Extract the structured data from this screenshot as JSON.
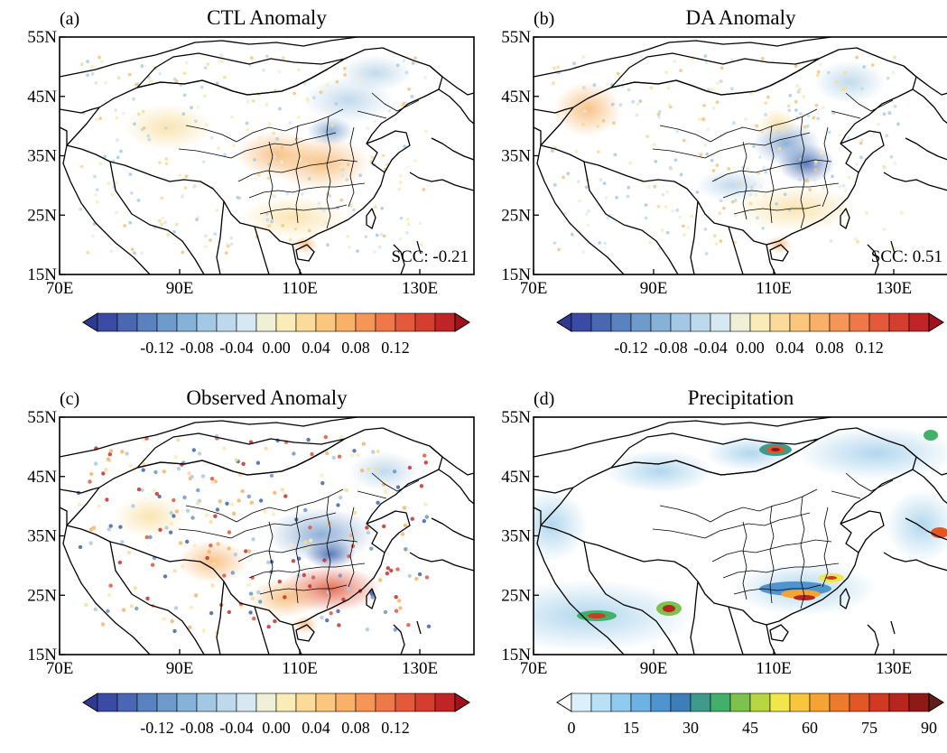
{
  "panels": [
    {
      "label": "(a)",
      "title": "CTL Anomaly",
      "scc": "SCC: -0.21",
      "kind": "anomaly-model"
    },
    {
      "label": "(b)",
      "title": "DA Anomaly",
      "scc": "SCC: 0.51",
      "kind": "anomaly-model"
    },
    {
      "label": "(c)",
      "title": "Observed Anomaly",
      "scc": "",
      "kind": "anomaly-observed"
    },
    {
      "label": "(d)",
      "title": "Precipitation",
      "scc": "",
      "kind": "precipitation"
    }
  ],
  "axes": {
    "lat_ticks": [
      "55N",
      "45N",
      "35N",
      "25N",
      "15N"
    ],
    "lon_ticks": [
      "70E",
      "90E",
      "110E",
      "130E"
    ]
  },
  "colorbars": {
    "anomaly": {
      "tick_labels": [
        "-0.12",
        "-0.08",
        "-0.04",
        "0.00",
        "0.04",
        "0.08",
        "0.12"
      ],
      "colors": [
        "#3b4ba5",
        "#4a67b3",
        "#5a82c0",
        "#6f9bcc",
        "#86b2d8",
        "#a3c8e3",
        "#bed9ec",
        "#d6e8f2",
        "#f0f0d8",
        "#faecb6",
        "#fbdb97",
        "#fbc77c",
        "#f9b067",
        "#f59556",
        "#ee7847",
        "#e35a3a",
        "#d43e2f",
        "#bf2426"
      ],
      "under_color": "#2f3b92",
      "over_color": "#a3111d"
    },
    "precip": {
      "tick_labels": [
        "0",
        "15",
        "30",
        "45",
        "60",
        "75",
        "90"
      ],
      "colors": [
        "#dbf0fb",
        "#b8e0f6",
        "#8fcbef",
        "#6cb2e3",
        "#4e94cf",
        "#3c7fb8",
        "#3e9b8b",
        "#42b06a",
        "#7dc24d",
        "#b8d542",
        "#f1e74b",
        "#f7c63d",
        "#f4a334",
        "#ec7c2c",
        "#e25726",
        "#d13a22",
        "#b6251e",
        "#8e1a18"
      ],
      "under_color": "#ffffff",
      "over_color": "#5f1e16"
    }
  }
}
